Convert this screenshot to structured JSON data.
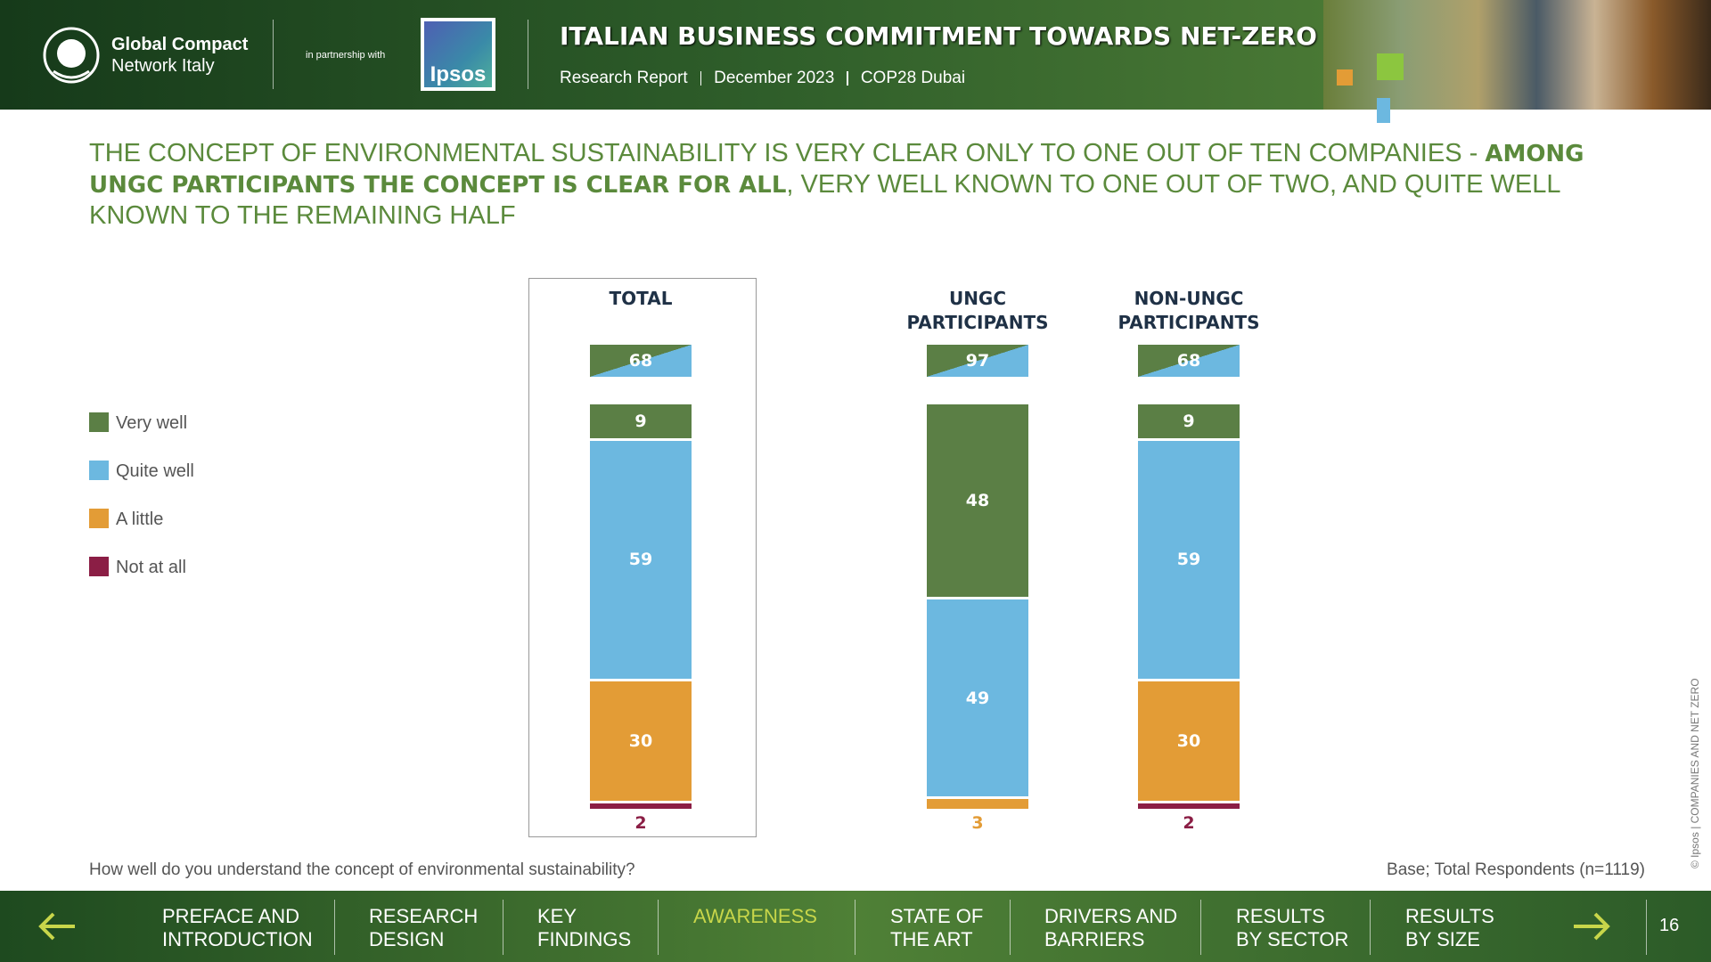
{
  "header": {
    "org_line1": "Global Compact",
    "org_line2": "Network Italy",
    "partnership": "in partnership with",
    "partner": "Ipsos",
    "title": "ITALIAN BUSINESS COMMITMENT TOWARDS NET-ZERO",
    "subtitle": [
      "Research Report",
      "December 2023",
      "COP28 Dubai"
    ]
  },
  "headline": [
    {
      "text": "THE CONCEPT OF ENVIRONMENTAL SUSTAINABILITY IS VERY CLEAR ONLY TO ONE OUT OF TEN COMPANIES - ",
      "bold": false
    },
    {
      "text": "AMONG UNGC PARTICIPANTS THE CONCEPT IS CLEAR FOR ALL",
      "bold": true
    },
    {
      "text": ", VERY WELL KNOWN TO ONE OUT OF TWO, AND QUITE WELL KNOWN TO THE REMAINING HALF",
      "bold": false
    }
  ],
  "chart_data": {
    "type": "stacked-bar",
    "categories": [
      "TOTAL",
      "UNGC PARTICIPANTS",
      "NON-UNGC PARTICIPANTS"
    ],
    "summary_values": [
      68,
      97,
      68
    ],
    "series": [
      {
        "name": "Very well",
        "color": "#5b7f45",
        "values": [
          9,
          48,
          9
        ]
      },
      {
        "name": "Quite well",
        "color": "#6cb8e0",
        "values": [
          59,
          49,
          59
        ]
      },
      {
        "name": "A little",
        "color": "#e39c36",
        "values": [
          30,
          3,
          30
        ]
      },
      {
        "name": "Not at all",
        "color": "#8b1e45",
        "values": [
          2,
          null,
          2
        ]
      }
    ]
  },
  "footer": {
    "question": "How well do you understand the concept of environmental sustainability?",
    "base": "Base; Total Respondents (n=1119)",
    "copyright": "© Ipsos | COMPANIES AND NET ZERO"
  },
  "nav": {
    "items": [
      [
        "PREFACE AND",
        "INTRODUCTION"
      ],
      [
        "RESEARCH",
        "DESIGN"
      ],
      [
        "KEY",
        "FINDINGS"
      ],
      [
        "AWARENESS"
      ],
      [
        "STATE OF",
        "THE ART"
      ],
      [
        "DRIVERS AND",
        "BARRIERS"
      ],
      [
        "RESULTS",
        "BY SECTOR"
      ],
      [
        "RESULTS",
        "BY SIZE"
      ]
    ],
    "active": 3,
    "page": "16"
  }
}
